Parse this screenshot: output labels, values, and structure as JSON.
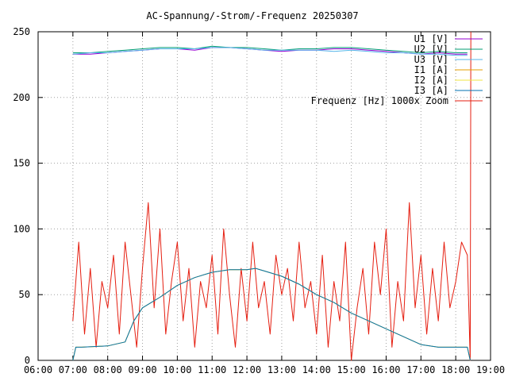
{
  "chart_data": {
    "type": "line",
    "title": "AC-Spannung/-Strom/-Frequenz 20250307",
    "xlabel": "",
    "ylabel": "",
    "xlim": [
      "06:00",
      "19:00"
    ],
    "ylim": [
      0,
      250
    ],
    "grid": true,
    "legend_position": "top-right",
    "x_ticks": [
      "06:00",
      "07:00",
      "08:00",
      "09:00",
      "10:00",
      "11:00",
      "12:00",
      "13:00",
      "14:00",
      "15:00",
      "16:00",
      "17:00",
      "18:00",
      "19:00"
    ],
    "y_ticks": [
      "0",
      "50",
      "100",
      "150",
      "200",
      "250"
    ],
    "series": [
      {
        "name": "U1 [V]",
        "color": "#9400d3",
        "x": [
          "07:00",
          "07:30",
          "08:00",
          "08:30",
          "09:00",
          "09:30",
          "10:00",
          "10:30",
          "11:00",
          "11:30",
          "12:00",
          "12:30",
          "13:00",
          "13:30",
          "14:00",
          "14:30",
          "15:00",
          "15:30",
          "16:00",
          "16:30",
          "17:00",
          "17:30",
          "18:00",
          "18:20"
        ],
        "y": [
          233,
          233,
          234,
          235,
          236,
          237,
          237,
          236,
          238,
          238,
          237,
          236,
          235,
          236,
          236,
          237,
          237,
          236,
          235,
          234,
          233,
          234,
          233,
          233
        ]
      },
      {
        "name": "U2 [V]",
        "color": "#009e73",
        "x": [
          "07:00",
          "07:30",
          "08:00",
          "08:30",
          "09:00",
          "09:30",
          "10:00",
          "10:30",
          "11:00",
          "11:30",
          "12:00",
          "12:30",
          "13:00",
          "13:30",
          "14:00",
          "14:30",
          "15:00",
          "15:30",
          "16:00",
          "16:30",
          "17:00",
          "17:30",
          "18:00",
          "18:20"
        ],
        "y": [
          234,
          234,
          235,
          236,
          237,
          238,
          238,
          237,
          239,
          238,
          238,
          237,
          236,
          237,
          237,
          238,
          238,
          237,
          236,
          235,
          234,
          235,
          234,
          234
        ]
      },
      {
        "name": "U3 [V]",
        "color": "#56b4e9",
        "x": [
          "07:00",
          "07:30",
          "08:00",
          "08:30",
          "09:00",
          "09:30",
          "10:00",
          "10:30",
          "11:00",
          "11:30",
          "12:00",
          "12:30",
          "13:00",
          "13:30",
          "14:00",
          "14:30",
          "15:00",
          "15:30",
          "16:00",
          "16:30",
          "17:00",
          "17:30",
          "18:00",
          "18:20"
        ],
        "y": [
          233,
          234,
          234,
          235,
          236,
          237,
          237,
          237,
          238,
          238,
          237,
          236,
          236,
          236,
          236,
          235,
          236,
          235,
          234,
          234,
          233,
          233,
          232,
          232
        ]
      },
      {
        "name": "I1 [A]",
        "color": "#e69f00",
        "x": [
          "07:00",
          "07:05",
          "07:15",
          "08:00",
          "08:30",
          "08:45",
          "09:00",
          "09:30",
          "10:00",
          "10:30",
          "11:00",
          "11:30",
          "12:00",
          "12:15",
          "12:30",
          "13:00",
          "13:30",
          "14:00",
          "14:30",
          "15:00",
          "15:30",
          "16:00",
          "16:30",
          "17:00",
          "17:30",
          "18:00",
          "18:20",
          "18:25"
        ],
        "y": [
          0,
          10,
          10,
          11,
          14,
          30,
          40,
          48,
          57,
          63,
          67,
          69,
          69,
          70,
          68,
          64,
          58,
          50,
          44,
          36,
          30,
          24,
          18,
          12,
          10,
          10,
          10,
          0
        ]
      },
      {
        "name": "I2 [A]",
        "color": "#f0e442",
        "x": [
          "07:00",
          "07:05",
          "07:15",
          "08:00",
          "08:30",
          "08:45",
          "09:00",
          "09:30",
          "10:00",
          "10:30",
          "11:00",
          "11:30",
          "12:00",
          "12:15",
          "12:30",
          "13:00",
          "13:30",
          "14:00",
          "14:30",
          "15:00",
          "15:30",
          "16:00",
          "16:30",
          "17:00",
          "17:30",
          "18:00",
          "18:20",
          "18:25"
        ],
        "y": [
          0,
          10,
          10,
          11,
          14,
          30,
          40,
          48,
          57,
          63,
          67,
          69,
          69,
          70,
          68,
          64,
          58,
          50,
          44,
          36,
          30,
          24,
          18,
          12,
          10,
          10,
          10,
          0
        ]
      },
      {
        "name": "I3 [A]",
        "color": "#0072b2",
        "x": [
          "07:00",
          "07:05",
          "07:15",
          "08:00",
          "08:30",
          "08:45",
          "09:00",
          "09:30",
          "10:00",
          "10:30",
          "11:00",
          "11:30",
          "12:00",
          "12:15",
          "12:30",
          "13:00",
          "13:30",
          "14:00",
          "14:30",
          "15:00",
          "15:30",
          "16:00",
          "16:30",
          "17:00",
          "17:30",
          "18:00",
          "18:20",
          "18:25"
        ],
        "y": [
          0,
          10,
          10,
          11,
          14,
          30,
          40,
          48,
          57,
          63,
          67,
          69,
          69,
          70,
          68,
          64,
          58,
          50,
          44,
          36,
          30,
          24,
          18,
          12,
          10,
          10,
          10,
          0
        ]
      },
      {
        "name": "Frequenz [Hz] 1000x Zoom",
        "color": "#e51e10",
        "x": [
          "07:00",
          "07:10",
          "07:20",
          "07:30",
          "07:40",
          "07:50",
          "08:00",
          "08:10",
          "08:20",
          "08:30",
          "08:40",
          "08:50",
          "09:00",
          "09:10",
          "09:20",
          "09:30",
          "09:40",
          "09:50",
          "10:00",
          "10:10",
          "10:20",
          "10:30",
          "10:40",
          "10:50",
          "11:00",
          "11:10",
          "11:20",
          "11:30",
          "11:40",
          "11:50",
          "12:00",
          "12:10",
          "12:20",
          "12:30",
          "12:40",
          "12:50",
          "13:00",
          "13:10",
          "13:20",
          "13:30",
          "13:40",
          "13:50",
          "14:00",
          "14:10",
          "14:20",
          "14:30",
          "14:40",
          "14:50",
          "15:00",
          "15:10",
          "15:20",
          "15:30",
          "15:40",
          "15:50",
          "16:00",
          "16:10",
          "16:20",
          "16:30",
          "16:40",
          "16:50",
          "17:00",
          "17:10",
          "17:20",
          "17:30",
          "17:40",
          "17:50",
          "18:00",
          "18:10",
          "18:20",
          "18:25",
          "18:26"
        ],
        "y": [
          30,
          90,
          20,
          70,
          10,
          60,
          40,
          80,
          20,
          90,
          50,
          10,
          70,
          120,
          40,
          100,
          20,
          60,
          90,
          30,
          70,
          10,
          60,
          40,
          80,
          20,
          100,
          50,
          10,
          70,
          30,
          90,
          40,
          60,
          20,
          80,
          50,
          70,
          30,
          90,
          40,
          60,
          20,
          80,
          10,
          60,
          30,
          90,
          0,
          40,
          70,
          20,
          90,
          50,
          100,
          10,
          60,
          30,
          120,
          40,
          80,
          20,
          70,
          30,
          90,
          40,
          60,
          90,
          80,
          0,
          250
        ]
      }
    ]
  }
}
